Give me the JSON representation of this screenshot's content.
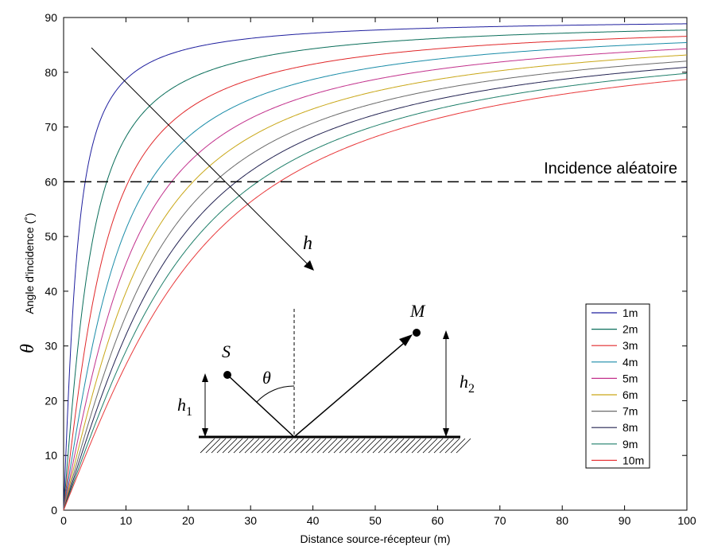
{
  "chart_data": {
    "type": "line",
    "xlabel": "Distance source-récepteur (m)",
    "ylabel": "Angle d'incidence (˚)",
    "ylabel_symbol": "θ",
    "xlim": [
      0,
      100
    ],
    "ylim": [
      0,
      90
    ],
    "xticks": [
      0,
      10,
      20,
      30,
      40,
      50,
      60,
      70,
      80,
      90,
      100
    ],
    "yticks": [
      0,
      10,
      20,
      30,
      40,
      50,
      60,
      70,
      80,
      90
    ],
    "grid": false,
    "legend_position": "right",
    "curve_formula": "theta = atan(d / (2 * h)) in degrees",
    "series": [
      {
        "name": "1m",
        "h": 1,
        "color": "#1f1f9e",
        "x": [
          0,
          1,
          2,
          5,
          10,
          20,
          30,
          50,
          75,
          100
        ],
        "y": [
          0,
          26.6,
          45.0,
          68.2,
          78.7,
          84.3,
          86.2,
          87.7,
          88.5,
          88.9
        ]
      },
      {
        "name": "2m",
        "h": 2,
        "color": "#0a6e5a",
        "x": [
          0,
          1,
          2,
          5,
          10,
          20,
          30,
          50,
          75,
          100
        ],
        "y": [
          0,
          14.0,
          26.6,
          51.3,
          68.2,
          78.7,
          82.4,
          85.4,
          87.0,
          87.7
        ]
      },
      {
        "name": "3m",
        "h": 3,
        "color": "#e0282a",
        "x": [
          0,
          2,
          5,
          10,
          20,
          30,
          50,
          75,
          100
        ],
        "y": [
          0,
          18.4,
          39.8,
          59.0,
          73.3,
          78.7,
          83.2,
          85.4,
          86.6
        ]
      },
      {
        "name": "4m",
        "h": 4,
        "color": "#1a8ca8",
        "x": [
          0,
          2,
          5,
          10,
          20,
          30,
          50,
          75,
          100
        ],
        "y": [
          0,
          14.0,
          32.0,
          51.3,
          68.2,
          75.1,
          81.0,
          83.9,
          85.4
        ]
      },
      {
        "name": "5m",
        "h": 5,
        "color": "#c2318c",
        "x": [
          0,
          5,
          10,
          20,
          30,
          50,
          75,
          100
        ],
        "y": [
          0,
          26.6,
          45.0,
          63.4,
          71.6,
          78.7,
          82.4,
          84.3
        ]
      },
      {
        "name": "6m",
        "h": 6,
        "color": "#c9a718",
        "x": [
          0,
          5,
          10,
          20,
          30,
          50,
          75,
          100
        ],
        "y": [
          0,
          22.6,
          39.8,
          59.0,
          68.2,
          76.5,
          80.9,
          83.2
        ]
      },
      {
        "name": "7m",
        "h": 7,
        "color": "#6b6b6b",
        "x": [
          0,
          5,
          10,
          20,
          30,
          50,
          75,
          100
        ],
        "y": [
          0,
          19.7,
          35.5,
          55.0,
          65.0,
          74.3,
          79.4,
          82.0
        ]
      },
      {
        "name": "8m",
        "h": 8,
        "color": "#232352",
        "x": [
          0,
          5,
          10,
          20,
          30,
          50,
          75,
          100
        ],
        "y": [
          0,
          17.4,
          32.0,
          51.3,
          61.9,
          72.3,
          77.9,
          80.9
        ]
      },
      {
        "name": "9m",
        "h": 9,
        "color": "#1f7f6a",
        "x": [
          0,
          5,
          10,
          20,
          30,
          50,
          75,
          100
        ],
        "y": [
          0,
          15.5,
          29.1,
          48.0,
          59.0,
          70.2,
          76.5,
          79.8
        ]
      },
      {
        "name": "10m",
        "h": 10,
        "color": "#e8383a",
        "x": [
          0,
          5,
          10,
          20,
          30,
          50,
          75,
          100
        ],
        "y": [
          0,
          14.0,
          26.6,
          45.0,
          56.3,
          68.2,
          75.1,
          78.7
        ]
      }
    ],
    "reference_line": {
      "y": 60,
      "style": "dashed",
      "label": "Incidence aléatoire"
    },
    "annotations": {
      "trend_arrow_label": "h",
      "inset": {
        "source": "S",
        "receiver": "M",
        "angle": "θ",
        "h1": "h",
        "h1_sub": "1",
        "h2": "h",
        "h2_sub": "2"
      }
    }
  }
}
